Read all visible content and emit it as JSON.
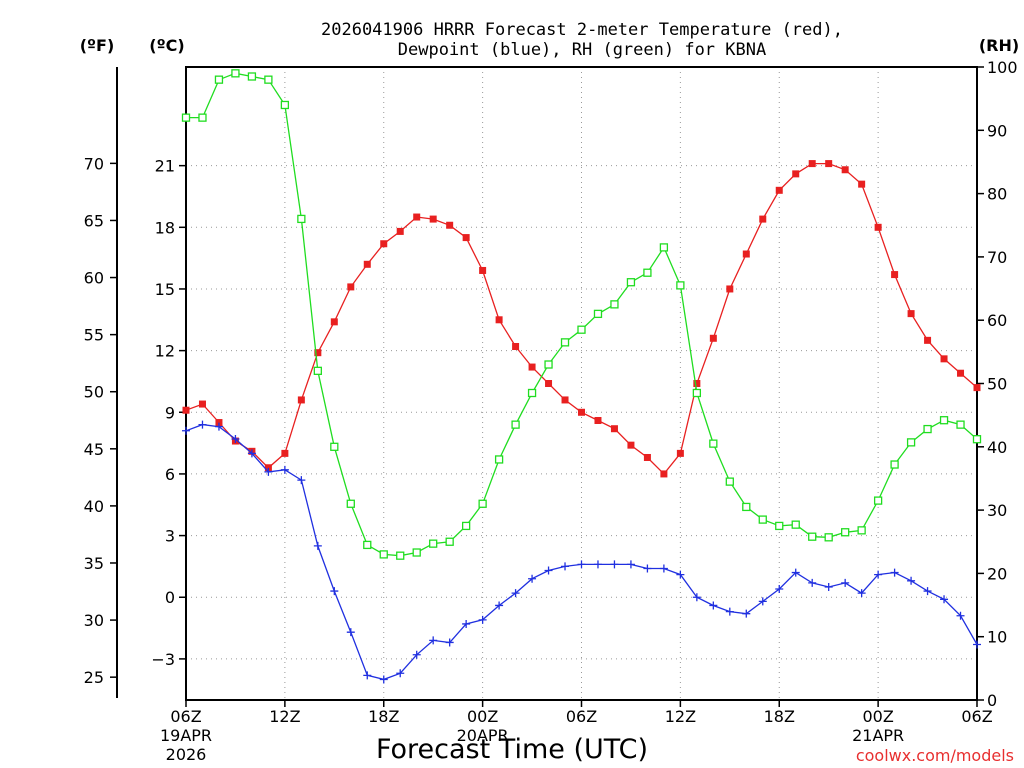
{
  "chart_data": {
    "type": "line",
    "title_line1": "2026041906 HRRR Forecast 2-meter Temperature (red),",
    "title_line2": "Dewpoint (blue), RH (green) for KBNA",
    "xlabel": "Forecast Time (UTC)",
    "unit_labels": {
      "fahrenheit": "(ºF)",
      "celsius": "(ºC)",
      "rh": "(RH)"
    },
    "credit": "coolwx.com/models",
    "x_hours_range": [
      0,
      48
    ],
    "x_ticks": [
      {
        "hour": 0,
        "label": "06Z",
        "sub1": "19APR",
        "sub2": "2026"
      },
      {
        "hour": 6,
        "label": "12Z"
      },
      {
        "hour": 12,
        "label": "18Z"
      },
      {
        "hour": 18,
        "label": "00Z",
        "sub1": "20APR"
      },
      {
        "hour": 24,
        "label": "06Z"
      },
      {
        "hour": 30,
        "label": "12Z"
      },
      {
        "hour": 36,
        "label": "18Z"
      },
      {
        "hour": 42,
        "label": "00Z",
        "sub1": "21APR"
      },
      {
        "hour": 48,
        "label": "06Z"
      }
    ],
    "celsius_axis": {
      "range": [
        -5,
        25.8
      ],
      "ticks": [
        21,
        18,
        15,
        12,
        9,
        6,
        3,
        0,
        -3
      ],
      "tick_labels": [
        "21",
        "18",
        "15",
        "12",
        "9",
        "6",
        "3",
        "0",
        "−3"
      ]
    },
    "fahrenheit_axis": {
      "ticks": [
        70,
        65,
        60,
        55,
        50,
        45,
        40,
        35,
        30,
        25
      ],
      "tick_labels": [
        "70",
        "65",
        "60",
        "55",
        "50",
        "45",
        "40",
        "35",
        "30",
        "25"
      ]
    },
    "rh_axis": {
      "range": [
        0,
        100
      ],
      "ticks": [
        100,
        90,
        80,
        70,
        60,
        50,
        40,
        30,
        20,
        10,
        0
      ],
      "tick_labels": [
        "100",
        "90",
        "80",
        "70",
        "60",
        "50",
        "40",
        "30",
        "20",
        "10",
        "0"
      ]
    },
    "series": [
      {
        "name": "Temperature",
        "unit": "C",
        "color": "#e82020",
        "values": [
          9.1,
          9.4,
          8.5,
          7.6,
          7.1,
          6.3,
          7.0,
          9.6,
          11.9,
          13.4,
          15.1,
          16.2,
          17.2,
          17.8,
          18.5,
          18.4,
          18.1,
          17.5,
          15.9,
          13.5,
          12.2,
          11.2,
          10.4,
          9.6,
          9.0,
          8.6,
          8.2,
          7.4,
          6.8,
          6.0,
          7.0,
          10.4,
          12.6,
          15.0,
          16.7,
          18.4,
          19.8,
          20.6,
          21.1,
          21.1,
          20.8,
          20.1,
          18.0,
          15.7,
          13.8,
          12.5,
          11.6,
          10.9,
          10.2
        ]
      },
      {
        "name": "Dewpoint",
        "unit": "C",
        "color": "#2030e0",
        "values": [
          8.1,
          8.4,
          8.3,
          7.7,
          7.0,
          6.1,
          6.2,
          5.7,
          2.5,
          0.3,
          -1.7,
          -3.8,
          -4.0,
          -3.7,
          -2.8,
          -2.1,
          -2.2,
          -1.3,
          -1.1,
          -0.4,
          0.2,
          0.9,
          1.3,
          1.5,
          1.6,
          1.6,
          1.6,
          1.6,
          1.4,
          1.4,
          1.1,
          0.0,
          -0.4,
          -0.7,
          -0.8,
          -0.2,
          0.4,
          1.2,
          0.7,
          0.5,
          0.7,
          0.2,
          1.1,
          1.2,
          0.8,
          0.3,
          -0.1,
          -0.9,
          -2.3
        ]
      },
      {
        "name": "RH",
        "unit": "%",
        "color": "#20dd20",
        "values": [
          92,
          92,
          98,
          99,
          98.5,
          98,
          94,
          76,
          52,
          40,
          31,
          24.5,
          23,
          22.8,
          23.3,
          24.7,
          25,
          27.5,
          31,
          38,
          43.5,
          48.5,
          53,
          56.5,
          58.5,
          61,
          62.5,
          66,
          67.5,
          71.5,
          65.5,
          48.5,
          40.5,
          34.5,
          30.5,
          28.5,
          27.5,
          27.7,
          25.8,
          25.7,
          26.5,
          26.8,
          31.5,
          37.2,
          40.7,
          42.8,
          44.2,
          43.5,
          41.2
        ]
      }
    ]
  }
}
